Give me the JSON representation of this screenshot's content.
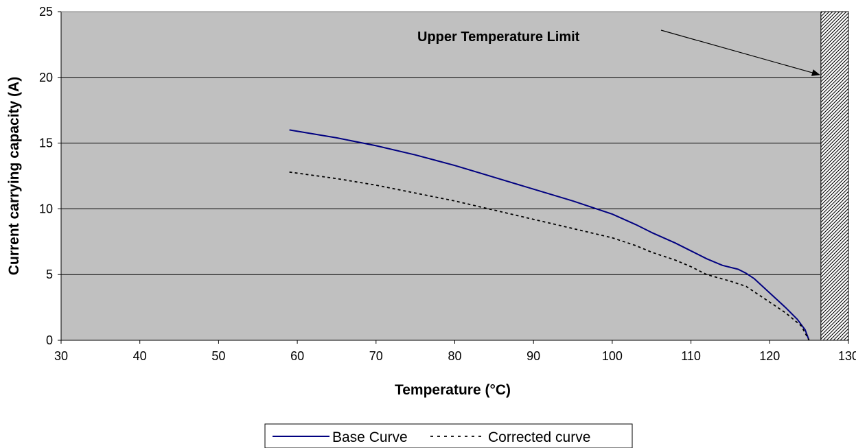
{
  "chart_data": {
    "type": "line",
    "title": "",
    "xlabel": "Temperature (°C)",
    "ylabel": "Current carrying capacity (A)",
    "xlim": [
      30,
      130
    ],
    "ylim": [
      0,
      25
    ],
    "x_ticks": [
      30,
      40,
      50,
      60,
      70,
      80,
      90,
      100,
      110,
      120,
      130
    ],
    "y_ticks": [
      0,
      5,
      10,
      15,
      20,
      25
    ],
    "x_tick_labels": [
      "30",
      "40",
      "50",
      "60",
      "70",
      "80",
      "90",
      "100",
      "110",
      "120",
      "130"
    ],
    "y_tick_labels": [
      "0",
      "5",
      "10",
      "15",
      "20",
      "25"
    ],
    "grid": "horizontal",
    "legend_position": "bottom",
    "plot_background": "#c0c0c0",
    "series": [
      {
        "name": "Base Curve",
        "color": "#000080",
        "style": "solid",
        "x": [
          59,
          65,
          70,
          75,
          80,
          85,
          90,
          95,
          100,
          103,
          105,
          108,
          110,
          112,
          114,
          116,
          117,
          118,
          120,
          122,
          123.5,
          124.5,
          125
        ],
        "y": [
          16,
          15.4,
          14.8,
          14.1,
          13.3,
          12.4,
          11.5,
          10.6,
          9.6,
          8.8,
          8.2,
          7.4,
          6.8,
          6.2,
          5.7,
          5.4,
          5.1,
          4.7,
          3.6,
          2.5,
          1.6,
          0.8,
          0
        ]
      },
      {
        "name": "Corrected curve",
        "color": "#000000",
        "style": "dashed",
        "x": [
          59,
          65,
          70,
          75,
          80,
          85,
          90,
          95,
          100,
          103,
          105,
          108,
          110,
          112,
          115,
          117,
          118,
          120,
          122,
          124,
          125
        ],
        "y": [
          12.8,
          12.3,
          11.8,
          11.2,
          10.6,
          9.9,
          9.2,
          8.5,
          7.8,
          7.2,
          6.7,
          6.1,
          5.6,
          5.0,
          4.5,
          4.1,
          3.7,
          2.9,
          2.1,
          1.1,
          0
        ]
      }
    ],
    "shaded_region": {
      "x_from": 126.5,
      "x_to": 130,
      "pattern": "diagonal-hatch"
    },
    "annotations": [
      {
        "text": "Upper Temperature Limit",
        "arrow_to_x": 126.5,
        "arrow_to_y": 20.2
      }
    ]
  }
}
